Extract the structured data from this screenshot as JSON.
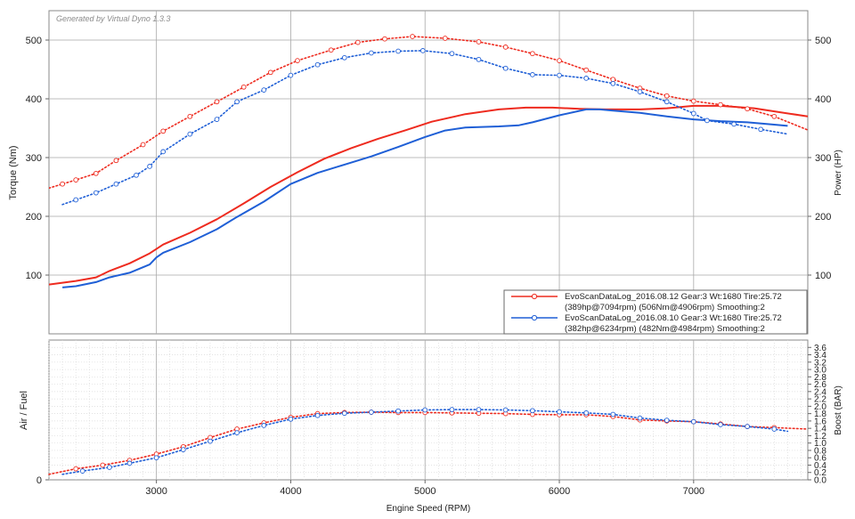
{
  "watermark": "Generated by Virtual Dyno 1.3.3",
  "colors": {
    "run1": "#ee2b1f",
    "run2": "#1f5fd6",
    "grid": "#a9a9a9",
    "minor": "#d9d9d9"
  },
  "chart_data": [
    {
      "type": "line",
      "title": "",
      "xlabel": "",
      "ylabel": "Torque (Nm)",
      "y2label": "Power (HP)",
      "xlim": [
        2200,
        7850
      ],
      "ylim": [
        0,
        550
      ],
      "y2lim": [
        0,
        550
      ],
      "x_ticks": [
        3000,
        4000,
        5000,
        6000,
        7000
      ],
      "y_ticks": [
        100,
        200,
        300,
        400,
        500
      ],
      "y2_ticks": [
        100,
        200,
        300,
        400,
        500
      ],
      "legend_position": "bottom-right",
      "legend": [
        {
          "line1": "EvoScanDataLog_2016.08.12 Gear:3 Wt:1680 Tire:25.72",
          "line2": "(389hp@7094rpm) (506Nm@4906rpm) Smoothing:2"
        },
        {
          "line1": "EvoScanDataLog_2016.08.10 Gear:3 Wt:1680 Tire:25.72",
          "line2": "(382hp@6234rpm) (482Nm@4984rpm) Smoothing:2"
        }
      ],
      "series": [
        {
          "name": "EvoScanDataLog_2016.08.12 Gear:3 Wt:1680 Tire:25.72",
          "metric": "power",
          "style": "solid",
          "x": [
            2200,
            2300,
            2400,
            2550,
            2650,
            2800,
            2950,
            3050,
            3250,
            3450,
            3650,
            3850,
            4050,
            4250,
            4450,
            4650,
            4850,
            5050,
            5300,
            5550,
            5750,
            5950,
            6150,
            6350,
            6600,
            6800,
            7000,
            7200,
            7450,
            7650,
            7850
          ],
          "y": [
            84,
            87,
            90,
            96,
            107,
            120,
            137,
            152,
            172,
            195,
            222,
            250,
            275,
            298,
            316,
            332,
            346,
            361,
            374,
            382,
            385,
            385,
            383,
            382,
            382,
            384,
            388,
            388,
            384,
            377,
            370
          ]
        },
        {
          "name": "EvoScanDataLog_2016.08.10 Gear:3 Wt:1680 Tire:25.72",
          "metric": "power",
          "style": "solid",
          "x": [
            2300,
            2400,
            2550,
            2650,
            2800,
            2950,
            3000,
            3050,
            3250,
            3450,
            3600,
            3800,
            4000,
            4200,
            4400,
            4600,
            4800,
            5000,
            5150,
            5300,
            5550,
            5700,
            5800,
            6000,
            6200,
            6300,
            6400,
            6600,
            6800,
            7000,
            7200,
            7400,
            7600,
            7700
          ],
          "y": [
            79,
            81,
            88,
            96,
            104,
            118,
            130,
            138,
            156,
            178,
            199,
            225,
            255,
            274,
            288,
            302,
            318,
            335,
            346,
            351,
            353,
            355,
            360,
            372,
            382,
            382,
            380,
            376,
            370,
            365,
            362,
            360,
            356,
            354
          ]
        },
        {
          "name": "EvoScanDataLog_2016.08.12 Gear:3 Wt:1680 Tire:25.72",
          "metric": "torque",
          "style": "dotted",
          "x": [
            2200,
            2300,
            2400,
            2550,
            2700,
            2900,
            3050,
            3250,
            3450,
            3650,
            3850,
            4050,
            4300,
            4500,
            4700,
            4906,
            5150,
            5400,
            5600,
            5800,
            6000,
            6200,
            6400,
            6600,
            6800,
            7000,
            7200,
            7400,
            7600,
            7850
          ],
          "y": [
            248,
            255,
            262,
            273,
            295,
            322,
            345,
            370,
            395,
            420,
            445,
            465,
            483,
            496,
            502,
            506,
            503,
            497,
            488,
            477,
            465,
            449,
            433,
            418,
            405,
            396,
            390,
            383,
            370,
            347
          ]
        },
        {
          "name": "EvoScanDataLog_2016.08.10 Gear:3 Wt:1680 Tire:25.72",
          "metric": "torque",
          "style": "dotted",
          "x": [
            2300,
            2400,
            2550,
            2700,
            2850,
            2950,
            3050,
            3250,
            3450,
            3600,
            3800,
            4000,
            4200,
            4400,
            4600,
            4800,
            4984,
            5200,
            5400,
            5600,
            5800,
            6000,
            6200,
            6400,
            6600,
            6800,
            7000,
            7100,
            7300,
            7500,
            7700
          ],
          "y": [
            220,
            228,
            240,
            255,
            270,
            285,
            310,
            340,
            365,
            395,
            415,
            440,
            458,
            470,
            478,
            481,
            482,
            477,
            467,
            452,
            441,
            440,
            435,
            426,
            412,
            395,
            375,
            363,
            357,
            348,
            340
          ]
        }
      ]
    },
    {
      "type": "line",
      "title": "",
      "xlabel": "Engine Speed (RPM)",
      "ylabel": "Air / Fuel",
      "y2label": "Boost (BAR)",
      "xlim": [
        2200,
        7850
      ],
      "ylim": [
        0,
        3.8
      ],
      "x_ticks": [
        3000,
        4000,
        5000,
        6000,
        7000
      ],
      "y_ticks": [
        0
      ],
      "y2_ticks": [
        0.0,
        0.2,
        0.4,
        0.6,
        0.8,
        1.0,
        1.2,
        1.4,
        1.6,
        1.8,
        2.0,
        2.2,
        2.4,
        2.6,
        2.8,
        3.0,
        3.2,
        3.4,
        3.6
      ],
      "y2_tick_labels": [
        "0.0",
        "0.2",
        "0.4",
        "0.6",
        "0.8",
        "1.0",
        "1.2",
        "1.4",
        "1.6",
        "1.8",
        "2.0",
        "2.2",
        "2.4",
        "2.6",
        "2.8",
        "3.0",
        "3.2",
        "3.4",
        "3.6"
      ],
      "series": [
        {
          "name": "EvoScanDataLog_2016.08.12 Gear:3 Wt:1680 Tire:25.72",
          "metric": "boost",
          "style": "dotted",
          "x": [
            2200,
            2400,
            2600,
            2800,
            3000,
            3200,
            3400,
            3600,
            3800,
            4000,
            4200,
            4400,
            4600,
            4800,
            5000,
            5200,
            5400,
            5600,
            5800,
            6000,
            6200,
            6400,
            6600,
            6800,
            7000,
            7200,
            7400,
            7600,
            7850
          ],
          "y": [
            0.15,
            0.3,
            0.4,
            0.53,
            0.7,
            0.9,
            1.15,
            1.38,
            1.55,
            1.7,
            1.8,
            1.83,
            1.84,
            1.83,
            1.83,
            1.82,
            1.81,
            1.8,
            1.78,
            1.77,
            1.77,
            1.72,
            1.63,
            1.6,
            1.58,
            1.52,
            1.45,
            1.42,
            1.38
          ]
        },
        {
          "name": "EvoScanDataLog_2016.08.10 Gear:3 Wt:1680 Tire:25.72",
          "metric": "boost",
          "style": "dotted",
          "x": [
            2300,
            2450,
            2650,
            2800,
            3000,
            3200,
            3400,
            3600,
            3800,
            4000,
            4200,
            4400,
            4600,
            4800,
            5000,
            5200,
            5400,
            5600,
            5800,
            6000,
            6200,
            6400,
            6600,
            6800,
            7000,
            7200,
            7400,
            7600,
            7700
          ],
          "y": [
            0.15,
            0.24,
            0.34,
            0.45,
            0.6,
            0.82,
            1.05,
            1.28,
            1.48,
            1.65,
            1.75,
            1.81,
            1.84,
            1.87,
            1.9,
            1.91,
            1.91,
            1.9,
            1.88,
            1.85,
            1.82,
            1.78,
            1.68,
            1.62,
            1.58,
            1.5,
            1.45,
            1.38,
            1.32
          ]
        }
      ]
    }
  ]
}
